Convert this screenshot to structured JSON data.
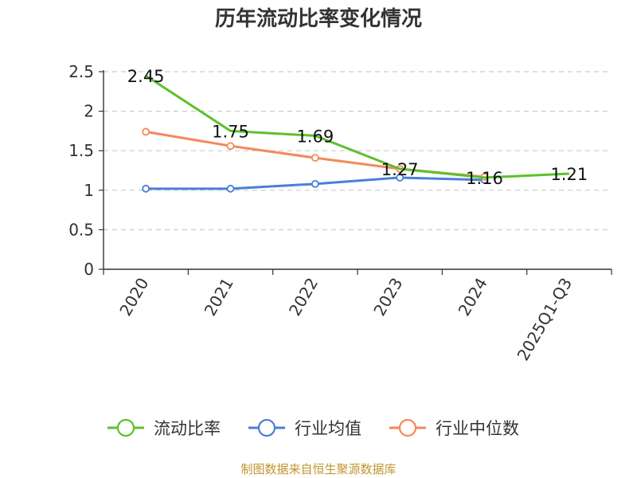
{
  "chart_data": {
    "type": "line",
    "title": "历年流动比率变化情况",
    "categories": [
      "2020",
      "2021",
      "2022",
      "2023",
      "2024",
      "2025Q1-Q3"
    ],
    "y_ticks": [
      "0",
      "0.5",
      "1",
      "1.5",
      "2",
      "2.5"
    ],
    "ylim": [
      0,
      2.5
    ],
    "grid": true,
    "legend_position": "bottom",
    "series": [
      {
        "name": "流动比率",
        "color": "#5cc12a",
        "values": [
          2.45,
          1.75,
          1.69,
          1.27,
          1.16,
          1.21
        ],
        "labels": [
          "2.45",
          "1.75",
          "1.69",
          "1.27",
          "1.16",
          "1.21"
        ],
        "markers": false
      },
      {
        "name": "行业均值",
        "color": "#4a7fd9",
        "values": [
          1.02,
          1.02,
          1.08,
          1.16,
          1.13,
          null
        ],
        "markers": true
      },
      {
        "name": "行业中位数",
        "color": "#f5895a",
        "values": [
          1.74,
          1.56,
          1.41,
          1.27,
          1.17,
          null
        ],
        "markers": true
      }
    ]
  },
  "source_text": "制图数据来自恒生聚源数据库"
}
